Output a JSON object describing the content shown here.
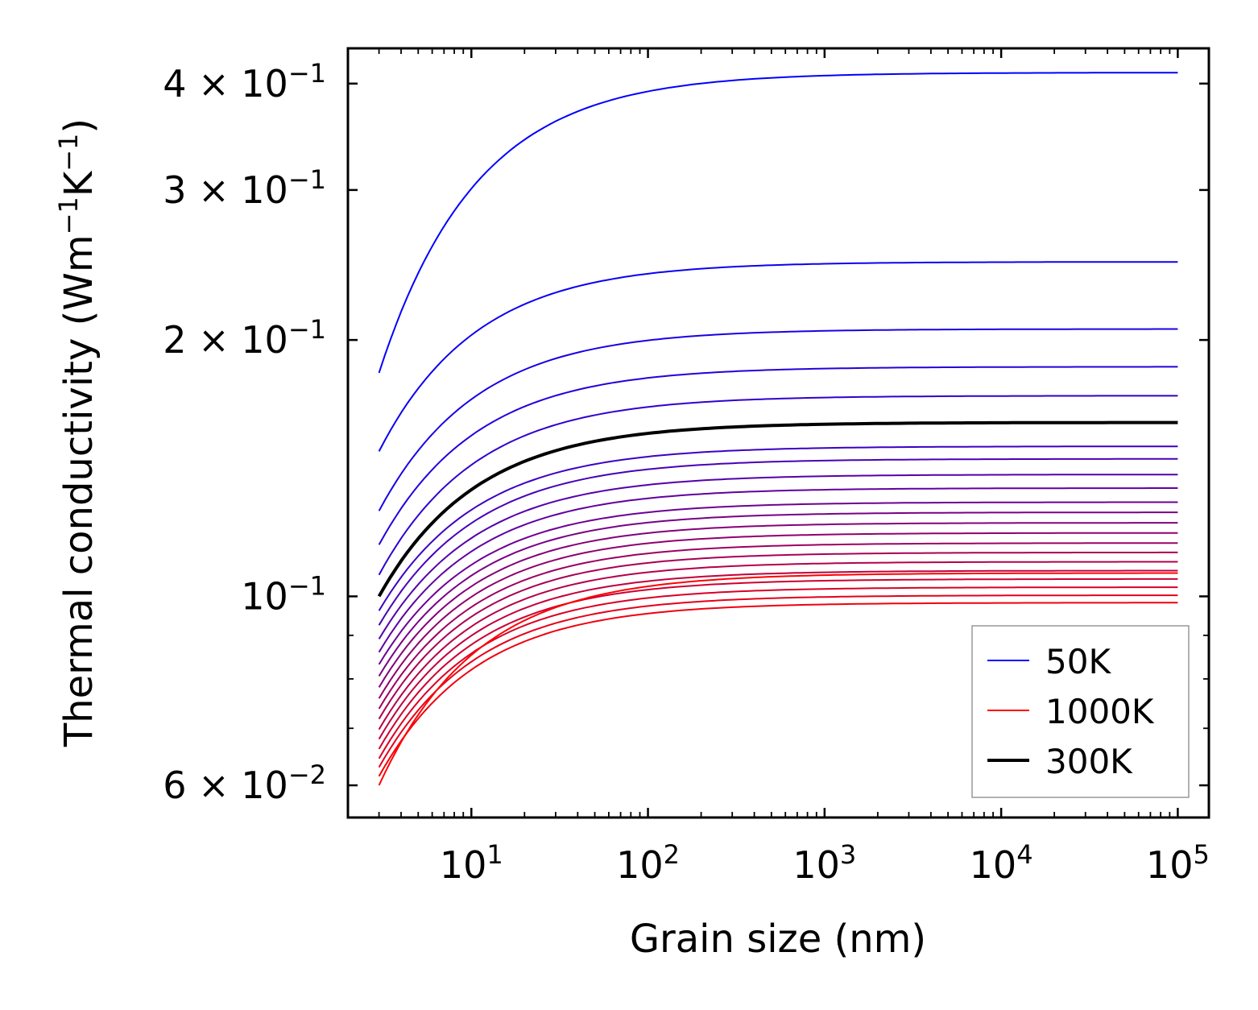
{
  "chart_data": {
    "type": "line",
    "title": "",
    "xlabel": "Grain size (nm)",
    "ylabel": "Thermal conductivity (Wm",
    "ylabel_sup1": "−1",
    "ylabel_mid": "K",
    "ylabel_sup2": "−1",
    "ylabel_end": ")",
    "xscale": "log",
    "yscale": "log",
    "xlim": [
      2,
      150000
    ],
    "ylim": [
      0.055,
      0.44
    ],
    "x_ticks": [
      {
        "base": "10",
        "exp": "1"
      },
      {
        "base": "10",
        "exp": "2"
      },
      {
        "base": "10",
        "exp": "3"
      },
      {
        "base": "10",
        "exp": "4"
      },
      {
        "base": "10",
        "exp": "5"
      }
    ],
    "y_ticks": [
      {
        "mant": "4 × ",
        "base": "10",
        "exp": "−1"
      },
      {
        "mant": "3 × ",
        "base": "10",
        "exp": "−1"
      },
      {
        "mant": "2 × ",
        "base": "10",
        "exp": "−1"
      },
      {
        "mant": "",
        "base": "10",
        "exp": "−1"
      },
      {
        "mant": "6 × ",
        "base": "10",
        "exp": "−2"
      }
    ],
    "x_grain_nm": [
      3,
      10,
      100,
      1000,
      10000,
      100000
    ],
    "temperature_range_K": [
      50,
      1000
    ],
    "highlight_temperature_K": 300,
    "series": [
      {
        "name": "50K",
        "color": "#0000ff",
        "start": 0.183,
        "end": 0.412
      },
      {
        "name": "",
        "color": "#0c00f2",
        "start": 0.148,
        "end": 0.247
      },
      {
        "name": "",
        "color": "#1800e6",
        "start": 0.126,
        "end": 0.206
      },
      {
        "name": "",
        "color": "#2400da",
        "start": 0.115,
        "end": 0.186
      },
      {
        "name": "",
        "color": "#3000ce",
        "start": 0.106,
        "end": 0.172
      },
      {
        "name": "",
        "color": "#3c00c2",
        "start": 0.0962,
        "end": 0.15
      },
      {
        "name": "",
        "color": "#4800b6",
        "start": 0.0925,
        "end": 0.145
      },
      {
        "name": "",
        "color": "#5400aa",
        "start": 0.0891,
        "end": 0.139
      },
      {
        "name": "",
        "color": "#60009e",
        "start": 0.086,
        "end": 0.134
      },
      {
        "name": "",
        "color": "#6c0092",
        "start": 0.0832,
        "end": 0.129
      },
      {
        "name": "",
        "color": "#780086",
        "start": 0.0806,
        "end": 0.1255
      },
      {
        "name": "",
        "color": "#84007a",
        "start": 0.0782,
        "end": 0.122
      },
      {
        "name": "",
        "color": "#90006e",
        "start": 0.0759,
        "end": 0.1187
      },
      {
        "name": "",
        "color": "#9c0062",
        "start": 0.0738,
        "end": 0.1155
      },
      {
        "name": "",
        "color": "#a80056",
        "start": 0.0718,
        "end": 0.1126
      },
      {
        "name": "",
        "color": "#b4004a",
        "start": 0.0698,
        "end": 0.1098
      },
      {
        "name": "",
        "color": "#c0003e",
        "start": 0.068,
        "end": 0.1072
      },
      {
        "name": "",
        "color": "#cc0032",
        "start": 0.0662,
        "end": 0.1048
      },
      {
        "name": "",
        "color": "#d80026",
        "start": 0.0645,
        "end": 0.1025
      },
      {
        "name": "",
        "color": "#e4001a",
        "start": 0.063,
        "end": 0.1003
      },
      {
        "name": "",
        "color": "#f0000e",
        "start": 0.0615,
        "end": 0.0983
      },
      {
        "name": "1000K",
        "color": "#ff0000",
        "start": 0.06,
        "end": 0.1065
      },
      {
        "name": "300K",
        "color": "#000000",
        "start": 0.1,
        "end": 0.16
      }
    ],
    "legend": {
      "position": "lower-right",
      "entries": [
        {
          "label": "50K",
          "color": "#0000ff"
        },
        {
          "label": "1000K",
          "color": "#ff0000"
        },
        {
          "label": "300K",
          "color": "#000000"
        }
      ]
    }
  }
}
